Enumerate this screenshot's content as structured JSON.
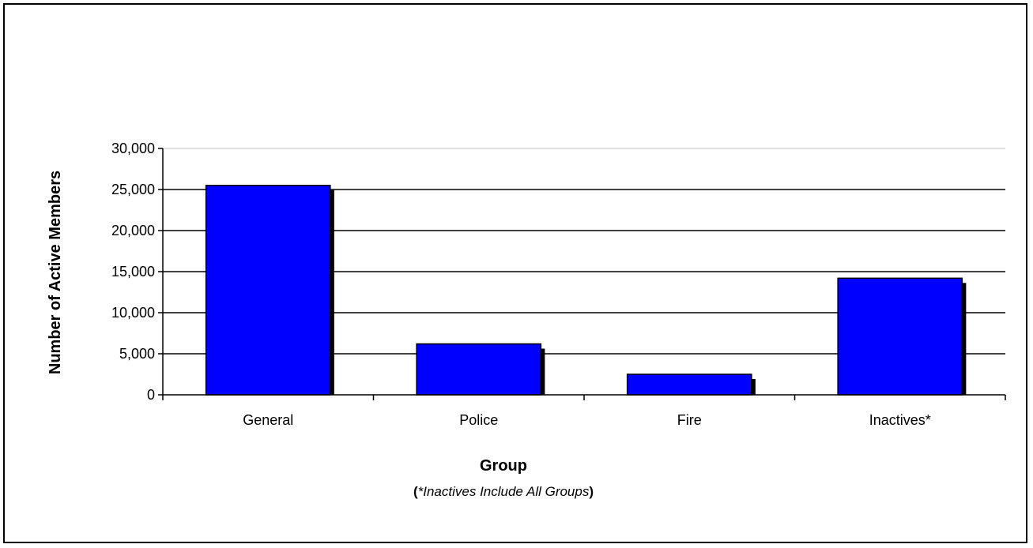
{
  "chart_data": {
    "type": "bar",
    "categories": [
      "General",
      "Police",
      "Fire",
      "Inactives*"
    ],
    "values": [
      25500,
      6200,
      2500,
      14200
    ],
    "xlabel": "Group",
    "ylabel": "Number of Active Members",
    "footnote": {
      "open_paren": "(",
      "text": "*Inactives Include All Groups",
      "close_paren": ")"
    },
    "ylim": [
      0,
      30000
    ],
    "yticks": [
      0,
      5000,
      10000,
      15000,
      20000,
      25000,
      30000
    ],
    "ytick_labels": [
      "0",
      "5,000",
      "10,000",
      "15,000",
      "20,000",
      "25,000",
      "30,000"
    ],
    "grid": true,
    "legend": "none",
    "colors": {
      "bar_fill": "#0000ff",
      "bar_stroke": "#000000",
      "shadow": "#000000",
      "gridline": "#000000",
      "top_gridline": "#bfbfbf"
    }
  }
}
